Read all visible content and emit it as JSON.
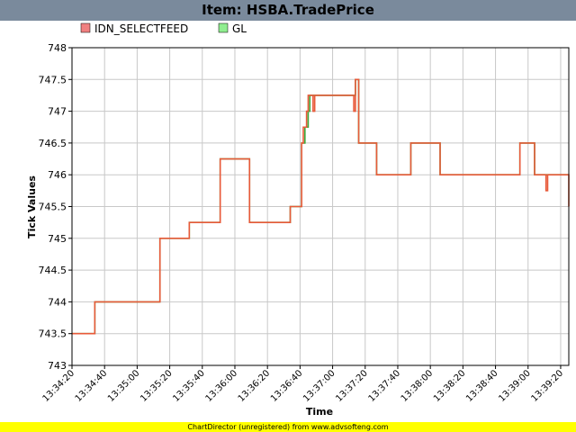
{
  "window": {
    "title": "Item: HSBA.TradePrice"
  },
  "footer": {
    "text": "ChartDirector (unregistered) from www.advsofteng.com"
  },
  "chart_data": {
    "type": "line",
    "title": "Item: HSBA.TradePrice",
    "xlabel": "Time",
    "ylabel": "Tick Values",
    "legend_position": "top-left",
    "grid": true,
    "ylim": [
      743,
      748
    ],
    "yticks": [
      "743",
      "743.5",
      "744",
      "744.5",
      "745",
      "745.5",
      "746",
      "746.5",
      "747",
      "747.5",
      "748"
    ],
    "xlim": [
      "13:34:20",
      "13:39:25"
    ],
    "xticks": [
      "13:34:20",
      "13:34:40",
      "13:35:00",
      "13:35:20",
      "13:35:40",
      "13:36:00",
      "13:36:20",
      "13:36:40",
      "13:37:00",
      "13:37:20",
      "13:37:40",
      "13:38:00",
      "13:38:20",
      "13:38:40",
      "13:39:00",
      "13:39:20"
    ],
    "series": [
      {
        "name": "IDN_SELECTFEED",
        "color": "#e85a3a",
        "legend_color": "#f08080",
        "step": true,
        "points": [
          [
            "13:34:20",
            743.5
          ],
          [
            "13:34:34",
            744
          ],
          [
            "13:35:14",
            745
          ],
          [
            "13:35:32",
            745.25
          ],
          [
            "13:35:51",
            746.25
          ],
          [
            "13:36:09",
            745.25
          ],
          [
            "13:36:34",
            745.5
          ],
          [
            "13:36:41",
            746.5
          ],
          [
            "13:36:42",
            746.75
          ],
          [
            "13:36:44",
            747
          ],
          [
            "13:36:45",
            747.25
          ],
          [
            "13:36:48",
            747
          ],
          [
            "13:36:49",
            747.25
          ],
          [
            "13:37:13",
            747
          ],
          [
            "13:37:14",
            747.5
          ],
          [
            "13:37:16",
            746.5
          ],
          [
            "13:37:27",
            746
          ],
          [
            "13:37:48",
            746.5
          ],
          [
            "13:38:06",
            746
          ],
          [
            "13:38:55",
            746.5
          ],
          [
            "13:39:04",
            746
          ],
          [
            "13:39:11",
            745.75
          ],
          [
            "13:39:12",
            746
          ],
          [
            "13:39:25",
            745.5
          ]
        ]
      },
      {
        "name": "GL",
        "color": "#3caa3c",
        "legend_color": "#90ee90",
        "step": true,
        "points": [
          [
            "13:34:20",
            743.5
          ],
          [
            "13:34:34",
            744
          ],
          [
            "13:35:14",
            745
          ],
          [
            "13:35:32",
            745.25
          ],
          [
            "13:35:51",
            746.25
          ],
          [
            "13:36:09",
            745.25
          ],
          [
            "13:36:34",
            745.5
          ],
          [
            "13:36:41",
            746.5
          ],
          [
            "13:36:43",
            746.75
          ],
          [
            "13:36:45",
            747
          ],
          [
            "13:36:46",
            747.25
          ],
          [
            "13:37:13",
            747.25
          ],
          [
            "13:37:14",
            747.5
          ],
          [
            "13:37:16",
            746.5
          ],
          [
            "13:37:27",
            746
          ],
          [
            "13:37:48",
            746.5
          ],
          [
            "13:38:06",
            746
          ],
          [
            "13:38:55",
            746.5
          ],
          [
            "13:39:04",
            746
          ],
          [
            "13:39:25",
            746
          ]
        ]
      }
    ]
  }
}
